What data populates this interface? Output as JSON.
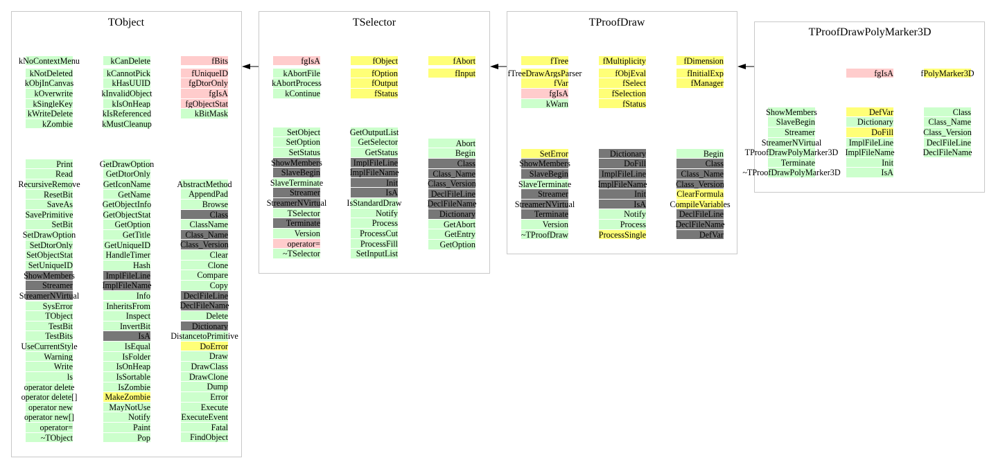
{
  "colors": {
    "g": "#ccffcc",
    "p": "#ffcccc",
    "y": "#ffff77",
    "d": "#777777"
  },
  "inheritance": [
    "TProofDrawPolyMarker3D",
    "TProofDraw",
    "TSelector",
    "TObject"
  ],
  "classes": [
    {
      "title": "TObject",
      "members": [
        [
          [
            "kNoContextMenu",
            "g"
          ],
          [
            "kNotDeleted",
            "g"
          ],
          [
            "kObjInCanvas",
            "g"
          ],
          [
            "kOverwrite",
            "g"
          ],
          [
            "kSingleKey",
            "g"
          ],
          [
            "kWriteDelete",
            "g"
          ],
          [
            "kZombie",
            "g"
          ]
        ],
        [
          [
            "kCanDelete",
            "g"
          ],
          [
            "kCannotPick",
            "g"
          ],
          [
            "kHasUUID",
            "g"
          ],
          [
            "kInvalidObject",
            "g"
          ],
          [
            "kIsOnHeap",
            "g"
          ],
          [
            "kIsReferenced",
            "g"
          ],
          [
            "kMustCleanup",
            "g"
          ]
        ],
        [
          [
            "fBits",
            "p"
          ],
          [
            "fUniqueID",
            "p"
          ],
          [
            "fgDtorOnly",
            "p"
          ],
          [
            "fgIsA",
            "p"
          ],
          [
            "fgObjectStat",
            "p"
          ],
          [
            "kBitMask",
            "g"
          ]
        ]
      ],
      "methods": [
        [
          [
            "Print",
            "g"
          ],
          [
            "Read",
            "g"
          ],
          [
            "RecursiveRemove",
            "g"
          ],
          [
            "ResetBit",
            "g"
          ],
          [
            "SaveAs",
            "g"
          ],
          [
            "SavePrimitive",
            "g"
          ],
          [
            "SetBit",
            "g"
          ],
          [
            "SetDrawOption",
            "g"
          ],
          [
            "SetDtorOnly",
            "g"
          ],
          [
            "SetObjectStat",
            "g"
          ],
          [
            "SetUniqueID",
            "g"
          ],
          [
            "ShowMembers",
            "d"
          ],
          [
            "Streamer",
            "d"
          ],
          [
            "StreamerNVirtual",
            "d"
          ],
          [
            "SysError",
            "g"
          ],
          [
            "TObject",
            "g"
          ],
          [
            "TestBit",
            "g"
          ],
          [
            "TestBits",
            "g"
          ],
          [
            "UseCurrentStyle",
            "g"
          ],
          [
            "Warning",
            "g"
          ],
          [
            "Write",
            "g"
          ],
          [
            "ls",
            "g"
          ],
          [
            "operator delete",
            "g"
          ],
          [
            "operator delete[]",
            "g"
          ],
          [
            "operator new",
            "g"
          ],
          [
            "operator new[]",
            "g"
          ],
          [
            "operator=",
            "g"
          ],
          [
            "~TObject",
            "g"
          ]
        ],
        [
          [
            "GetDrawOption",
            "g"
          ],
          [
            "GetDtorOnly",
            "g"
          ],
          [
            "GetIconName",
            "g"
          ],
          [
            "GetName",
            "g"
          ],
          [
            "GetObjectInfo",
            "g"
          ],
          [
            "GetObjectStat",
            "g"
          ],
          [
            "GetOption",
            "g"
          ],
          [
            "GetTitle",
            "g"
          ],
          [
            "GetUniqueID",
            "g"
          ],
          [
            "HandleTimer",
            "g"
          ],
          [
            "Hash",
            "g"
          ],
          [
            "ImplFileLine",
            "d"
          ],
          [
            "ImplFileName",
            "d"
          ],
          [
            "Info",
            "g"
          ],
          [
            "InheritsFrom",
            "g"
          ],
          [
            "Inspect",
            "g"
          ],
          [
            "InvertBit",
            "g"
          ],
          [
            "IsA",
            "d"
          ],
          [
            "IsEqual",
            "g"
          ],
          [
            "IsFolder",
            "g"
          ],
          [
            "IsOnHeap",
            "g"
          ],
          [
            "IsSortable",
            "g"
          ],
          [
            "IsZombie",
            "g"
          ],
          [
            "MakeZombie",
            "y"
          ],
          [
            "MayNotUse",
            "g"
          ],
          [
            "Notify",
            "g"
          ],
          [
            "Paint",
            "g"
          ],
          [
            "Pop",
            "g"
          ]
        ],
        [
          [
            "AbstractMethod",
            "g"
          ],
          [
            "AppendPad",
            "g"
          ],
          [
            "Browse",
            "g"
          ],
          [
            "Class",
            "d"
          ],
          [
            "ClassName",
            "g"
          ],
          [
            "Class_Name",
            "d"
          ],
          [
            "Class_Version",
            "d"
          ],
          [
            "Clear",
            "g"
          ],
          [
            "Clone",
            "g"
          ],
          [
            "Compare",
            "g"
          ],
          [
            "Copy",
            "g"
          ],
          [
            "DeclFileLine",
            "d"
          ],
          [
            "DeclFileName",
            "d"
          ],
          [
            "Delete",
            "g"
          ],
          [
            "Dictionary",
            "d"
          ],
          [
            "DistancetoPrimitive",
            "g"
          ],
          [
            "DoError",
            "y"
          ],
          [
            "Draw",
            "g"
          ],
          [
            "DrawClass",
            "g"
          ],
          [
            "DrawClone",
            "g"
          ],
          [
            "Dump",
            "g"
          ],
          [
            "Error",
            "g"
          ],
          [
            "Execute",
            "g"
          ],
          [
            "ExecuteEvent",
            "g"
          ],
          [
            "Fatal",
            "g"
          ],
          [
            "FindObject",
            "g"
          ]
        ]
      ]
    },
    {
      "title": "TSelector",
      "members": [
        [
          [
            "fgIsA",
            "p"
          ],
          [
            "kAbortFile",
            "g"
          ],
          [
            "kAbortProcess",
            "g"
          ],
          [
            "kContinue",
            "g"
          ]
        ],
        [
          [
            "fObject",
            "y"
          ],
          [
            "fOption",
            "y"
          ],
          [
            "fOutput",
            "y"
          ],
          [
            "fStatus",
            "y"
          ]
        ],
        [
          [
            "fAbort",
            "y"
          ],
          [
            "fInput",
            "y"
          ]
        ]
      ],
      "methods": [
        [
          [
            "SetObject",
            "g"
          ],
          [
            "SetOption",
            "g"
          ],
          [
            "SetStatus",
            "g"
          ],
          [
            "ShowMembers",
            "d"
          ],
          [
            "SlaveBegin",
            "d"
          ],
          [
            "SlaveTerminate",
            "g"
          ],
          [
            "Streamer",
            "d"
          ],
          [
            "StreamerNVirtual",
            "d"
          ],
          [
            "TSelector",
            "g"
          ],
          [
            "Terminate",
            "d"
          ],
          [
            "Version",
            "g"
          ],
          [
            "operator=",
            "p"
          ],
          [
            "~TSelector",
            "g"
          ]
        ],
        [
          [
            "GetOutputList",
            "g"
          ],
          [
            "GetSelector",
            "g"
          ],
          [
            "GetStatus",
            "g"
          ],
          [
            "ImplFileLine",
            "d"
          ],
          [
            "ImplFileName",
            "d"
          ],
          [
            "Init",
            "d"
          ],
          [
            "IsA",
            "d"
          ],
          [
            "IsStandardDraw",
            "g"
          ],
          [
            "Notify",
            "g"
          ],
          [
            "Process",
            "g"
          ],
          [
            "ProcessCut",
            "g"
          ],
          [
            "ProcessFill",
            "g"
          ],
          [
            "SetInputList",
            "g"
          ]
        ],
        [
          [
            "Abort",
            "g"
          ],
          [
            "Begin",
            "g"
          ],
          [
            "Class",
            "d"
          ],
          [
            "Class_Name",
            "d"
          ],
          [
            "Class_Version",
            "d"
          ],
          [
            "DeclFileLine",
            "d"
          ],
          [
            "DeclFileName",
            "d"
          ],
          [
            "Dictionary",
            "d"
          ],
          [
            "GetAbort",
            "g"
          ],
          [
            "GetEntry",
            "g"
          ],
          [
            "GetOption",
            "g"
          ]
        ]
      ]
    },
    {
      "title": "TProofDraw",
      "members": [
        [
          [
            "fTree",
            "y"
          ],
          [
            "fTreeDrawArgsParser",
            "y"
          ],
          [
            "fVar",
            "y"
          ],
          [
            "fgIsA",
            "p"
          ],
          [
            "kWarn",
            "g"
          ]
        ],
        [
          [
            "fMultiplicity",
            "y"
          ],
          [
            "fObjEval",
            "y"
          ],
          [
            "fSelect",
            "y"
          ],
          [
            "fSelection",
            "y"
          ],
          [
            "fStatus",
            "y"
          ]
        ],
        [
          [
            "fDimension",
            "y"
          ],
          [
            "fInitialExp",
            "y"
          ],
          [
            "fManager",
            "y"
          ]
        ]
      ],
      "methods": [
        [
          [
            "SetError",
            "y"
          ],
          [
            "ShowMembers",
            "d"
          ],
          [
            "SlaveBegin",
            "d"
          ],
          [
            "SlaveTerminate",
            "g"
          ],
          [
            "Streamer",
            "d"
          ],
          [
            "StreamerNVirtual",
            "d"
          ],
          [
            "Terminate",
            "d"
          ],
          [
            "Version",
            "g"
          ],
          [
            "~TProofDraw",
            "g"
          ]
        ],
        [
          [
            "Dictionary",
            "d"
          ],
          [
            "DoFill",
            "d"
          ],
          [
            "ImplFileLine",
            "d"
          ],
          [
            "ImplFileName",
            "d"
          ],
          [
            "Init",
            "d"
          ],
          [
            "IsA",
            "d"
          ],
          [
            "Notify",
            "g"
          ],
          [
            "Process",
            "g"
          ],
          [
            "ProcessSingle",
            "y"
          ]
        ],
        [
          [
            "Begin",
            "g"
          ],
          [
            "Class",
            "d"
          ],
          [
            "Class_Name",
            "d"
          ],
          [
            "Class_Version",
            "d"
          ],
          [
            "ClearFormula",
            "y"
          ],
          [
            "CompileVariables",
            "y"
          ],
          [
            "DeclFileLine",
            "d"
          ],
          [
            "DeclFileName",
            "d"
          ],
          [
            "DefVar",
            "d"
          ]
        ]
      ]
    },
    {
      "title": "TProofDrawPolyMarker3D",
      "members": [
        [],
        [
          [
            "fgIsA",
            "p"
          ]
        ],
        [
          [
            "fPolyMarker3D",
            "y"
          ]
        ]
      ],
      "methods": [
        [
          [
            "ShowMembers",
            "g"
          ],
          [
            "SlaveBegin",
            "g"
          ],
          [
            "Streamer",
            "g"
          ],
          [
            "StreamerNVirtual",
            "g"
          ],
          [
            "TProofDrawPolyMarker3D",
            "g"
          ],
          [
            "Terminate",
            "g"
          ],
          [
            "~TProofDrawPolyMarker3D",
            "g"
          ]
        ],
        [
          [
            "DefVar",
            "y"
          ],
          [
            "Dictionary",
            "g"
          ],
          [
            "DoFill",
            "y"
          ],
          [
            "ImplFileLine",
            "g"
          ],
          [
            "ImplFileName",
            "g"
          ],
          [
            "Init",
            "g"
          ],
          [
            "IsA",
            "g"
          ]
        ],
        [
          [
            "Class",
            "g"
          ],
          [
            "Class_Name",
            "g"
          ],
          [
            "Class_Version",
            "g"
          ],
          [
            "DeclFileLine",
            "g"
          ],
          [
            "DeclFileName",
            "g"
          ]
        ]
      ]
    }
  ]
}
